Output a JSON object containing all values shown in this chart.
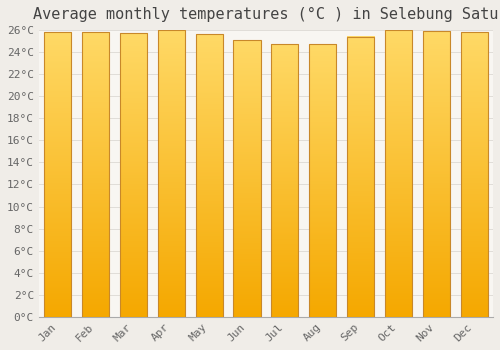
{
  "title": "Average monthly temperatures (°C ) in Selebung Satu",
  "months": [
    "Jan",
    "Feb",
    "Mar",
    "Apr",
    "May",
    "Jun",
    "Jul",
    "Aug",
    "Sep",
    "Oct",
    "Nov",
    "Dec"
  ],
  "values": [
    25.8,
    25.8,
    25.7,
    26.0,
    25.6,
    25.1,
    24.7,
    24.7,
    25.4,
    26.0,
    25.9,
    25.8
  ],
  "bar_color_bottom": "#F5A800",
  "bar_color_top": "#FFD966",
  "bar_edge_color": "#C8882A",
  "background_color": "#f0ede8",
  "plot_bg_color": "#f8f6f2",
  "grid_color": "#e0ddd8",
  "ylim": [
    0,
    26
  ],
  "ytick_step": 2,
  "title_fontsize": 11,
  "tick_fontsize": 8,
  "font_family": "monospace"
}
